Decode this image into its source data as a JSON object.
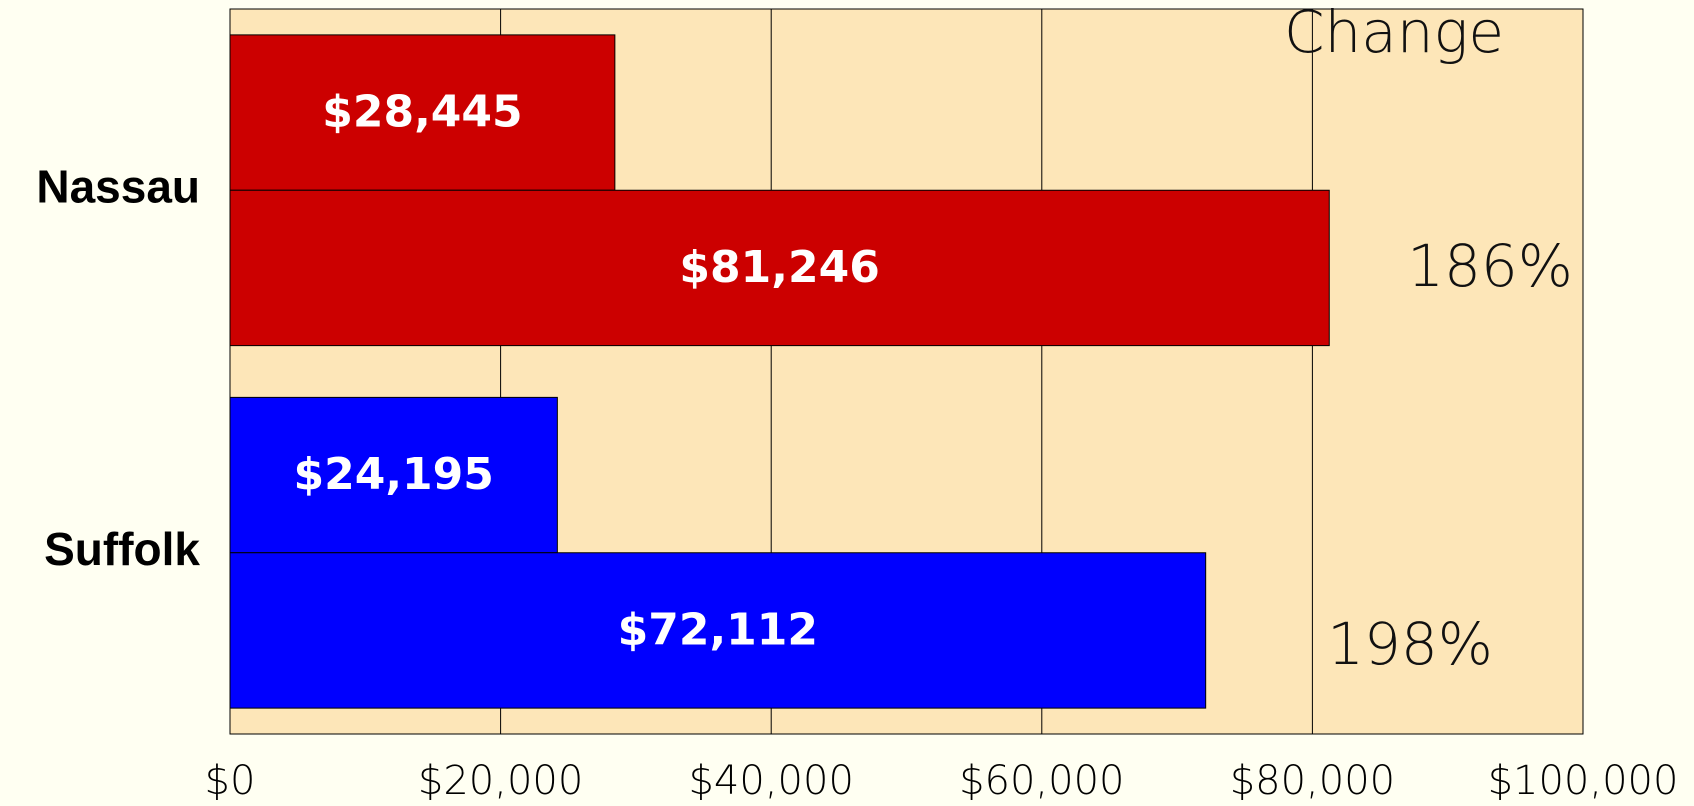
{
  "chart_data": {
    "type": "bar",
    "orientation": "horizontal",
    "categories": [
      "Nassau",
      "Suffolk"
    ],
    "colors": [
      "#cc0000",
      "#0000ff"
    ],
    "series": [
      {
        "values": [
          28445,
          24195
        ],
        "value_labels": [
          "$28,445",
          "$24,195"
        ]
      },
      {
        "values": [
          81246,
          72112
        ],
        "value_labels": [
          "$81,246",
          "$72,112"
        ]
      }
    ],
    "xlim": [
      0,
      100000
    ],
    "xticks": [
      {
        "value": 0,
        "label": "$0"
      },
      {
        "value": 20000,
        "label": "$20,000"
      },
      {
        "value": 40000,
        "label": "$40,000"
      },
      {
        "value": 60000,
        "label": "$60,000"
      },
      {
        "value": 80000,
        "label": "$80,000"
      },
      {
        "value": 100000,
        "label": "$100,000"
      }
    ],
    "grid": true,
    "change": {
      "title": "Change",
      "values": [
        186,
        198
      ],
      "value_labels": [
        "186%",
        "198%"
      ]
    }
  }
}
